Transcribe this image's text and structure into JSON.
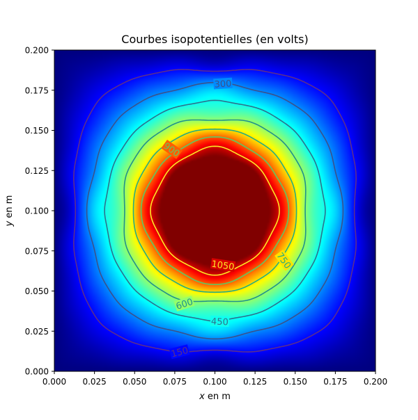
{
  "chart_data": {
    "type": "heatmap",
    "title": "Courbes isopotentielles (en volts)",
    "xlabel": {
      "italic": "x",
      "rest": " en m"
    },
    "ylabel": {
      "italic": "y",
      "rest": " en m"
    },
    "xlim": [
      0.0,
      0.2
    ],
    "ylim": [
      0.0,
      0.2
    ],
    "xticks": [
      "0.000",
      "0.025",
      "0.050",
      "0.075",
      "0.100",
      "0.125",
      "0.150",
      "0.175",
      "0.200"
    ],
    "yticks": [
      "0.000",
      "0.025",
      "0.050",
      "0.075",
      "0.100",
      "0.125",
      "0.150",
      "0.175",
      "0.200"
    ],
    "colormap": "jet",
    "vmin": 0,
    "vmax": 1150,
    "source": {
      "center": [
        0.1,
        0.1
      ],
      "radius": 0.034,
      "potential": 1150
    },
    "field_model": "sine-series square box, grounded edges",
    "contours": [
      {
        "level": 150,
        "label": "150",
        "label_at": [
          0.078,
          0.012
        ],
        "color": "#5b2e8c"
      },
      {
        "level": 300,
        "label": "300",
        "label_at": [
          0.105,
          0.179
        ],
        "color": "#3b528b"
      },
      {
        "level": 450,
        "label": "450",
        "label_at": [
          0.103,
          0.031
        ],
        "color": "#2c728e"
      },
      {
        "level": 600,
        "label": "600",
        "label_at": [
          0.081,
          0.042
        ],
        "color": "#21918c"
      },
      {
        "level": 750,
        "label": "750",
        "label_at": [
          0.143,
          0.069
        ],
        "color": "#28ae80"
      },
      {
        "level": 900,
        "label": "900",
        "label_at": [
          0.073,
          0.138
        ],
        "color": "#5ec962"
      },
      {
        "level": 1050,
        "label": "1050",
        "label_at": [
          0.105,
          0.066
        ],
        "color": "#fde725"
      }
    ],
    "grid": false,
    "legend": "none"
  }
}
